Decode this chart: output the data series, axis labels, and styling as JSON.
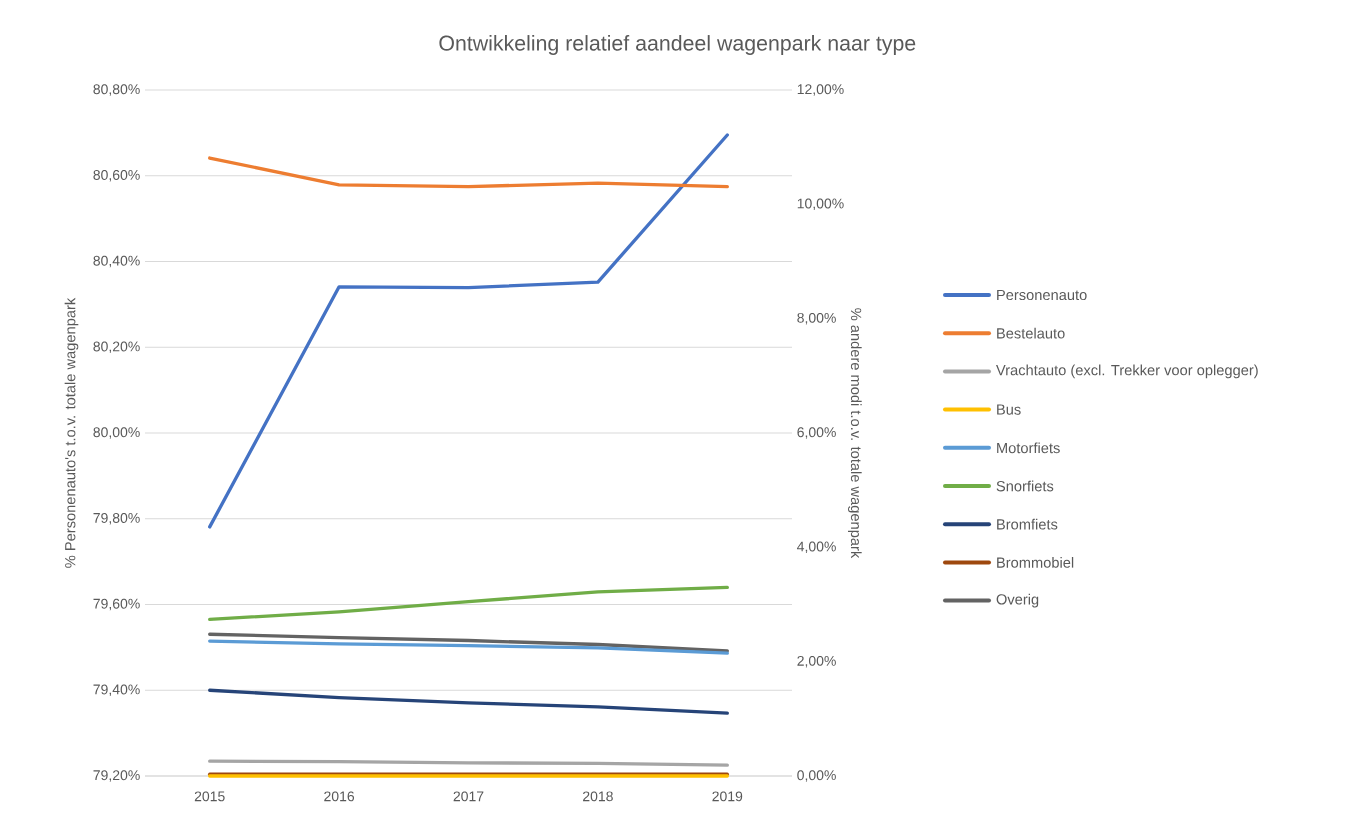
{
  "chart_data": {
    "type": "line",
    "title": "Ontwikkeling relatief aandeel wagenpark naar type",
    "ylabel": "% Personenauto's t.o.v. totale wagenpark",
    "y2label": "% andere modi t.o.v. totale wagenpark",
    "categories": [
      "2015",
      "2016",
      "2017",
      "2018",
      "2019"
    ],
    "series": [
      {
        "name": "Personenauto",
        "color": "#4472c4",
        "values": [
          79.781,
          80.341,
          80.339,
          80.352,
          80.695
        ]
      },
      {
        "name": "Bestelauto",
        "color": "#ed7d31",
        "axis": "y2",
        "values": [
          10.81,
          10.34,
          10.31,
          10.37,
          10.31
        ]
      },
      {
        "name": "Vrachtauto (excl. Trekker voor oplegger)",
        "color": "#a5a5a5",
        "axis": "y2",
        "values": [
          0.26,
          0.25,
          0.23,
          0.22,
          0.19
        ]
      },
      {
        "name": "Bus",
        "color": "#ffc000",
        "axis": "y2",
        "values": [
          0.0,
          0.0,
          0.0,
          0.0,
          0.0
        ]
      },
      {
        "name": "Motorfiets",
        "color": "#5b9bd5",
        "axis": "y2",
        "values": [
          2.36,
          2.31,
          2.28,
          2.24,
          2.15
        ]
      },
      {
        "name": "Snorfiets",
        "color": "#70ad47",
        "axis": "y2",
        "values": [
          2.74,
          2.87,
          3.05,
          3.22,
          3.3
        ]
      },
      {
        "name": "Bromfiets",
        "color": "#264478",
        "axis": "y2",
        "values": [
          1.5,
          1.37,
          1.28,
          1.21,
          1.1
        ]
      },
      {
        "name": "Brommobiel",
        "color": "#9e480e",
        "axis": "y2",
        "values": [
          0.03,
          0.03,
          0.03,
          0.03,
          0.03
        ]
      },
      {
        "name": "Overig",
        "color": "#636363",
        "axis": "y2",
        "values": [
          2.48,
          2.42,
          2.37,
          2.3,
          2.19
        ]
      }
    ],
    "ylim": [
      79.2,
      80.8
    ],
    "yticks": [
      {
        "value": 79.2,
        "label": "79,20%"
      },
      {
        "value": 79.4,
        "label": "79,40%"
      },
      {
        "value": 79.6,
        "label": "79,60%"
      },
      {
        "value": 79.8,
        "label": "79,80%"
      },
      {
        "value": 80.0,
        "label": "80,00%"
      },
      {
        "value": 80.2,
        "label": "80,20%"
      },
      {
        "value": 80.4,
        "label": "80,40%"
      },
      {
        "value": 80.6,
        "label": "80,60%"
      },
      {
        "value": 80.8,
        "label": "80,80%"
      }
    ],
    "y2lim": [
      0,
      12
    ],
    "y2ticks": [
      {
        "value": 0,
        "label": "0,00%"
      },
      {
        "value": 2,
        "label": "2,00%"
      },
      {
        "value": 4,
        "label": "4,00%"
      },
      {
        "value": 6,
        "label": "6,00%"
      },
      {
        "value": 8,
        "label": "8,00%"
      },
      {
        "value": 10,
        "label": "10,00%"
      },
      {
        "value": 12,
        "label": "12,00%"
      }
    ],
    "grid": "y",
    "legend": "right"
  }
}
